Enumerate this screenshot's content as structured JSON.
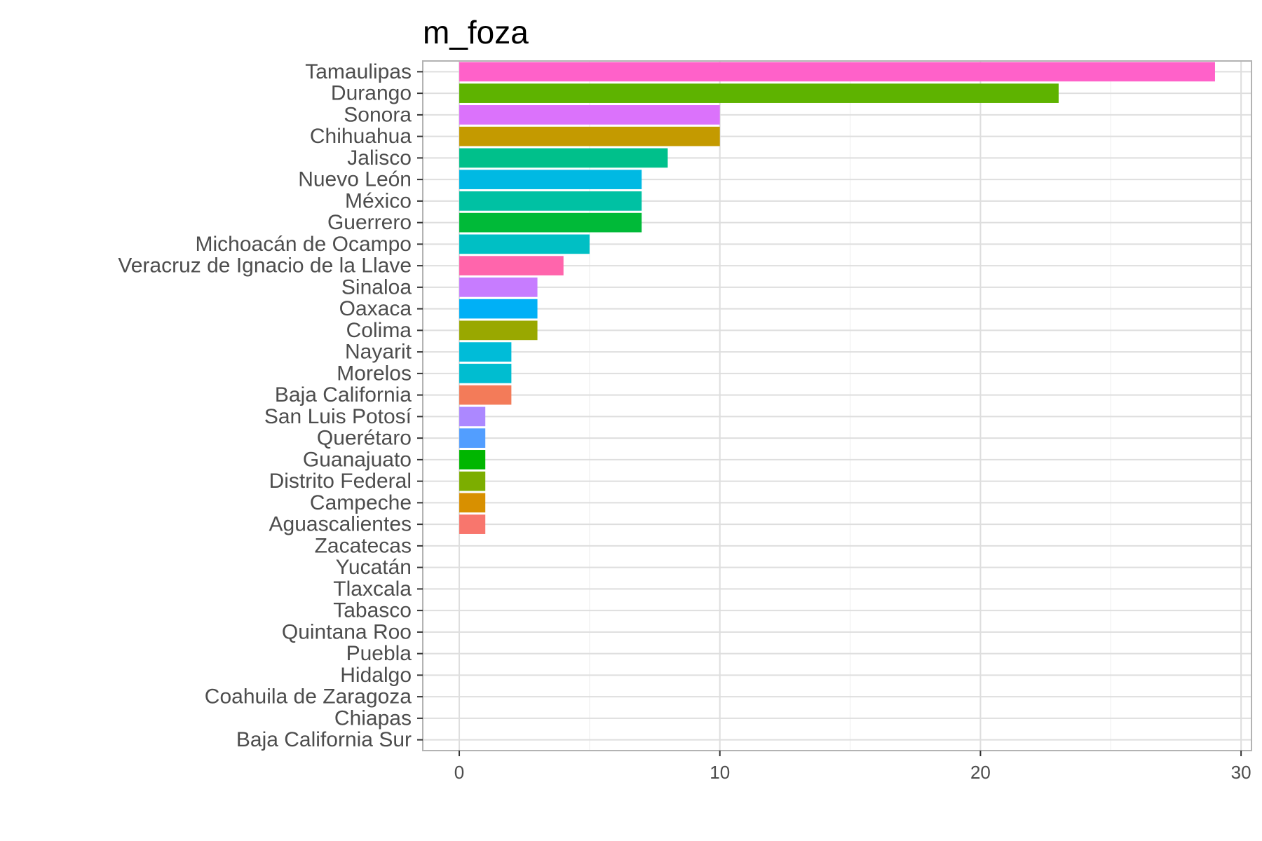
{
  "chart_data": {
    "type": "bar",
    "orientation": "horizontal",
    "title": "m_foza",
    "xlabel": "",
    "ylabel": "",
    "xlim": [
      -1.4,
      30.4
    ],
    "x_ticks": [
      0,
      10,
      20,
      30
    ],
    "x_tick_labels": [
      "0",
      "10",
      "20",
      "30"
    ],
    "x_minor_ticks": [
      5,
      15,
      25
    ],
    "grid": true,
    "legend": "none",
    "categories": [
      "Tamaulipas",
      "Durango",
      "Sonora",
      "Chihuahua",
      "Jalisco",
      "Nuevo León",
      "México",
      "Guerrero",
      "Michoacán de Ocampo",
      "Veracruz de Ignacio de la Llave",
      "Sinaloa",
      "Oaxaca",
      "Colima",
      "Nayarit",
      "Morelos",
      "Baja California",
      "San Luis Potosí",
      "Querétaro",
      "Guanajuato",
      "Distrito Federal",
      "Campeche",
      "Aguascalientes",
      "Zacatecas",
      "Yucatán",
      "Tlaxcala",
      "Tabasco",
      "Quintana Roo",
      "Puebla",
      "Hidalgo",
      "Coahuila de Zaragoza",
      "Chiapas",
      "Baja California Sur"
    ],
    "values": [
      29,
      23,
      10,
      10,
      8,
      7,
      7,
      7,
      5,
      4,
      3,
      3,
      3,
      2,
      2,
      2,
      1,
      1,
      1,
      1,
      1,
      1,
      0,
      0,
      0,
      0,
      0,
      0,
      0,
      0,
      0,
      0
    ],
    "colors": [
      "#FF61C9",
      "#5EB300",
      "#DB72FB",
      "#C49A00",
      "#00C08B",
      "#00B9E3",
      "#00C1A3",
      "#00BA38",
      "#00BFC4",
      "#FF65AC",
      "#C77CFF",
      "#00B0F6",
      "#99A800",
      "#00BCD8",
      "#00BDD0",
      "#F37B59",
      "#AC88FF",
      "#529EFF",
      "#00B600",
      "#7CAE00",
      "#D89000",
      "#F8766D",
      "#D39200",
      "#FB61D7",
      "#E76BF3",
      "#00A9FF",
      "#619CFF",
      "#7997FF",
      "#00BC56",
      "#FF67A4",
      "#ADA200",
      "#E58700"
    ],
    "axis_color": "#b3b3b3",
    "grid_color": "#dedede",
    "minor_grid_color": "#ededed"
  }
}
